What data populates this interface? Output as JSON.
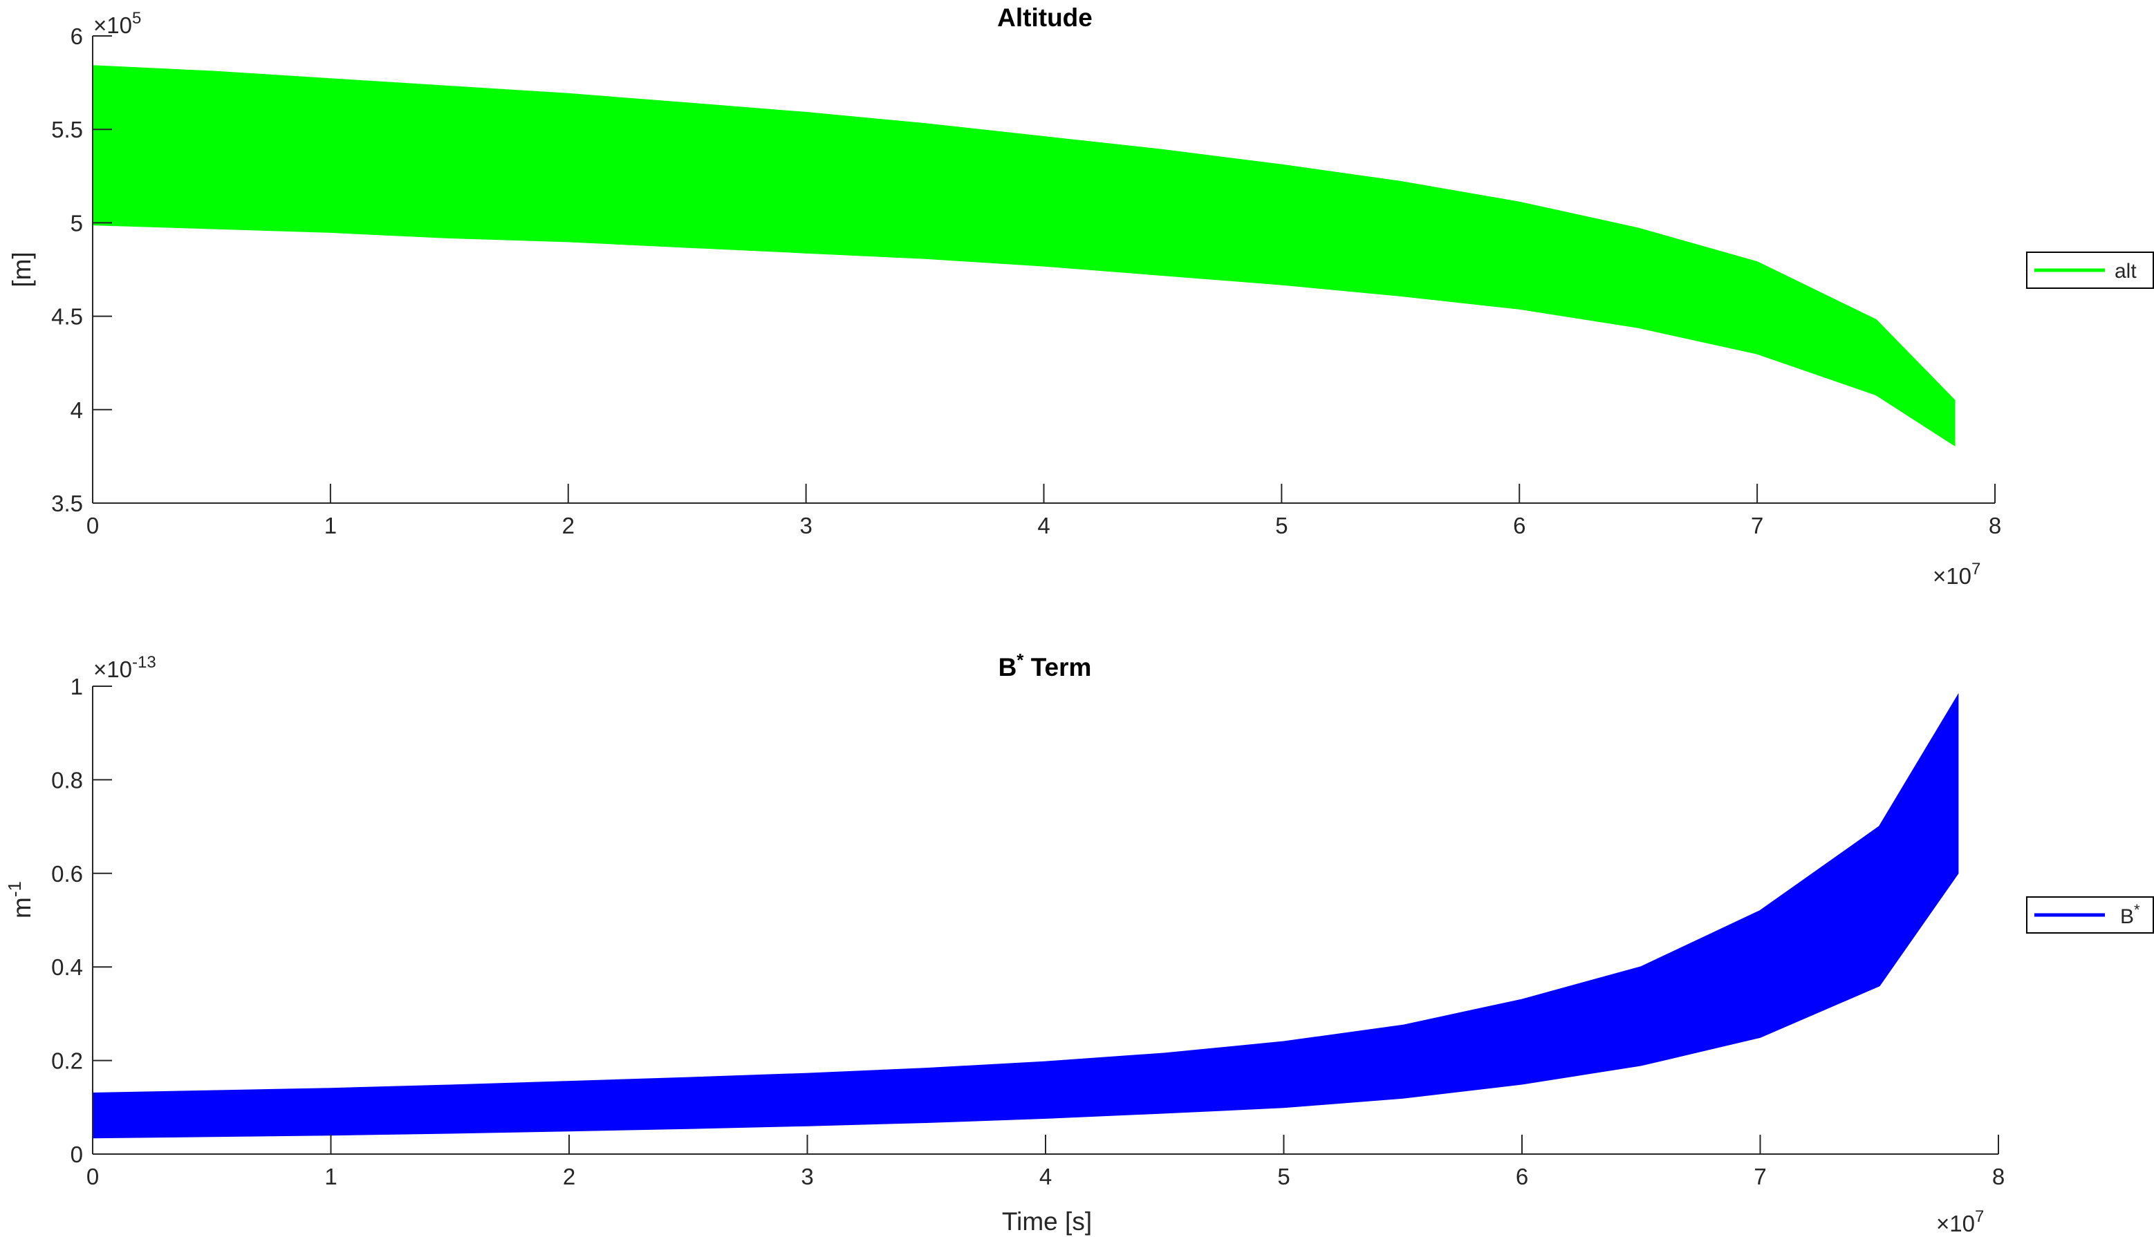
{
  "chart_data": [
    {
      "type": "area",
      "title": "Altitude",
      "xlabel": "",
      "ylabel": "[m]",
      "x_exponent": "7",
      "y_exponent": "5",
      "xlim": [
        0,
        8
      ],
      "ylim": [
        3.5,
        6
      ],
      "x_ticks": [
        "0",
        "1",
        "2",
        "3",
        "4",
        "5",
        "6",
        "7",
        "8"
      ],
      "y_ticks": [
        "3.5",
        "4",
        "4.5",
        "5",
        "5.5",
        "6"
      ],
      "y_tick_values": [
        3.5,
        4,
        4.5,
        5,
        5.5,
        6
      ],
      "legend": {
        "placement": "outside-right",
        "entries": [
          {
            "label": "alt",
            "color": "#00ff00"
          }
        ]
      },
      "series": [
        {
          "name": "alt",
          "color": "#00ff00",
          "x": [
            0,
            0.5,
            1,
            1.5,
            2,
            2.5,
            3,
            3.5,
            4,
            4.5,
            5,
            5.5,
            6,
            6.5,
            7,
            7.5,
            7.83
          ],
          "upper": [
            5.84,
            5.81,
            5.77,
            5.73,
            5.69,
            5.64,
            5.59,
            5.53,
            5.46,
            5.39,
            5.31,
            5.22,
            5.11,
            4.97,
            4.79,
            4.48,
            4.05
          ],
          "lower": [
            4.99,
            4.97,
            4.95,
            4.92,
            4.9,
            4.87,
            4.84,
            4.81,
            4.77,
            4.72,
            4.67,
            4.61,
            4.54,
            4.44,
            4.3,
            4.08,
            3.81
          ]
        }
      ]
    },
    {
      "type": "area",
      "title": "B",
      "title_superscript": "*",
      "title_suffix": " Term",
      "xlabel": "Time [s]",
      "ylabel": "m",
      "ylabel_superscript": "-1",
      "x_exponent": "7",
      "y_exponent": "-13",
      "xlim": [
        0,
        8
      ],
      "ylim": [
        0,
        1
      ],
      "x_ticks": [
        "0",
        "1",
        "2",
        "3",
        "4",
        "5",
        "6",
        "7",
        "8"
      ],
      "y_ticks": [
        "0",
        "0.2",
        "0.4",
        "0.6",
        "0.8",
        "1"
      ],
      "y_tick_values": [
        0,
        0.2,
        0.4,
        0.6,
        0.8,
        1
      ],
      "legend": {
        "placement": "outside-right",
        "entries": [
          {
            "label": "B",
            "superscript": "*",
            "color": "#0000ff"
          }
        ]
      },
      "series": [
        {
          "name": "B*",
          "color": "#0000ff",
          "x": [
            0,
            0.5,
            1,
            1.5,
            2,
            2.5,
            3,
            3.5,
            4,
            4.5,
            5,
            5.5,
            6,
            6.5,
            7,
            7.5,
            7.83
          ],
          "upper": [
            0.13,
            0.135,
            0.14,
            0.147,
            0.155,
            0.163,
            0.172,
            0.183,
            0.197,
            0.215,
            0.24,
            0.275,
            0.33,
            0.4,
            0.52,
            0.7,
            0.98
          ],
          "lower": [
            0.035,
            0.038,
            0.041,
            0.045,
            0.05,
            0.055,
            0.061,
            0.068,
            0.077,
            0.088,
            0.1,
            0.12,
            0.15,
            0.19,
            0.25,
            0.36,
            0.6
          ]
        }
      ]
    }
  ]
}
